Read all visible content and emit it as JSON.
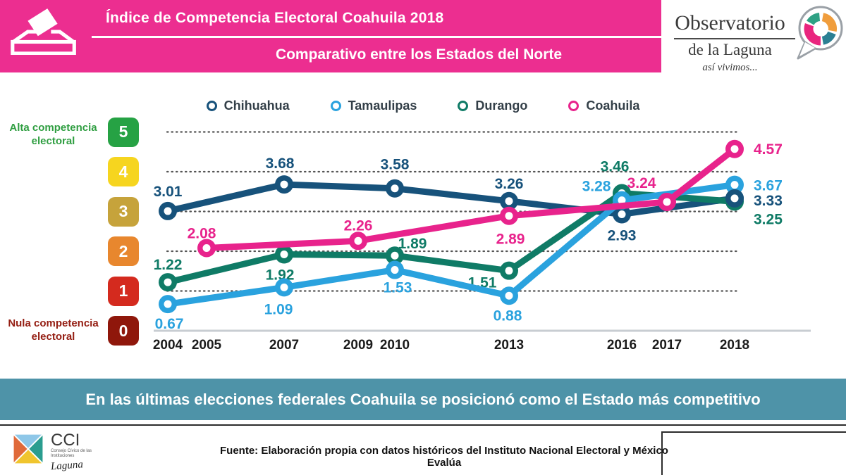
{
  "header": {
    "title": "Índice de Competencia Electoral Coahuila 2018",
    "subtitle": "Comparativo entre los Estados del Norte",
    "bg_color": "#ec2e90",
    "icon": "ballot-box-icon"
  },
  "brand": {
    "name": "Observatorio",
    "sub": "de la Laguna",
    "tagline": "así vivimos...",
    "icon": "speech-bubble-donut-icon",
    "donut_colors": [
      "#f09d3c",
      "#2b7f93",
      "#e9257e",
      "#2ea184"
    ]
  },
  "scale": {
    "high_label": "Alta competencia electoral",
    "low_label": "Nula competencia electoral",
    "high_color": "#2f9e41",
    "low_color": "#941d12",
    "boxes": [
      {
        "value": "5",
        "color": "#26a244"
      },
      {
        "value": "4",
        "color": "#f6d51f"
      },
      {
        "value": "3",
        "color": "#c6a33b"
      },
      {
        "value": "2",
        "color": "#e8872e"
      },
      {
        "value": "1",
        "color": "#d42a1e"
      },
      {
        "value": "0",
        "color": "#8f170b"
      }
    ]
  },
  "chart_data": {
    "type": "line",
    "x_years": [
      2004,
      2005,
      2007,
      2009,
      2010,
      2013,
      2016,
      2017,
      2018
    ],
    "ylim": [
      0,
      5
    ],
    "grid": "horizontal dotted lines at 1,2,3,4,5",
    "legend_position": "top",
    "series": [
      {
        "name": "Chihuahua",
        "color": "#17527b",
        "points": [
          {
            "year": 2004,
            "value": 3.01,
            "dx": 0,
            "dy": -28,
            "anchor": "middle"
          },
          {
            "year": 2007,
            "value": 3.68,
            "dx": -6,
            "dy": -30,
            "anchor": "middle"
          },
          {
            "year": 2010,
            "value": 3.58,
            "dx": 0,
            "dy": -34,
            "anchor": "middle"
          },
          {
            "year": 2013,
            "value": 3.26,
            "dx": 0,
            "dy": -25,
            "anchor": "middle"
          },
          {
            "year": 2016,
            "value": 2.93,
            "dx": 0,
            "dy": 30,
            "anchor": "middle"
          },
          {
            "year": 2018,
            "value": 3.33,
            "dx": 27,
            "dy": 3,
            "anchor": "start"
          }
        ]
      },
      {
        "name": "Durango",
        "color": "#0f7b66",
        "points": [
          {
            "year": 2004,
            "value": 1.22,
            "dx": 0,
            "dy": -25,
            "anchor": "middle"
          },
          {
            "year": 2007,
            "value": 1.92,
            "dx": -6,
            "dy": 29,
            "anchor": "middle"
          },
          {
            "year": 2010,
            "value": 1.89,
            "dx": 25,
            "dy": -17,
            "anchor": "middle"
          },
          {
            "year": 2013,
            "value": 1.51,
            "dx": -38,
            "dy": 17,
            "anchor": "middle"
          },
          {
            "year": 2016,
            "value": 3.46,
            "dx": -10,
            "dy": -38,
            "anchor": "middle"
          },
          {
            "year": 2018,
            "value": 3.25,
            "dx": 27,
            "dy": 25,
            "anchor": "start"
          }
        ]
      },
      {
        "name": "Tamaulipas",
        "color": "#2aa2de",
        "points": [
          {
            "year": 2004,
            "value": 0.67,
            "dx": 2,
            "dy": 28,
            "anchor": "middle"
          },
          {
            "year": 2007,
            "value": 1.09,
            "dx": -8,
            "dy": 31,
            "anchor": "middle"
          },
          {
            "year": 2010,
            "value": 1.53,
            "dx": 4,
            "dy": 25,
            "anchor": "middle"
          },
          {
            "year": 2013,
            "value": 0.88,
            "dx": -2,
            "dy": 28,
            "anchor": "middle"
          },
          {
            "year": 2016,
            "value": 3.28,
            "dx": -36,
            "dy": -20,
            "anchor": "middle"
          },
          {
            "year": 2018,
            "value": 3.67,
            "dx": 27,
            "dy": 1,
            "anchor": "start"
          }
        ]
      },
      {
        "name": "Coahuila",
        "color": "#e8238c",
        "points": [
          {
            "year": 2005,
            "value": 2.08,
            "dx": -7,
            "dy": -21,
            "anchor": "middle"
          },
          {
            "year": 2009,
            "value": 2.26,
            "dx": 0,
            "dy": -22,
            "anchor": "middle"
          },
          {
            "year": 2013,
            "value": 2.89,
            "dx": 2,
            "dy": 33,
            "anchor": "middle"
          },
          {
            "year": 2017,
            "value": 3.24,
            "dx": -36,
            "dy": -27,
            "anchor": "middle"
          },
          {
            "year": 2018,
            "value": 4.57,
            "dx": 27,
            "dy": 0,
            "anchor": "start"
          }
        ]
      }
    ],
    "legend_order": [
      "Chihuahua",
      "Tamaulipas",
      "Durango",
      "Coahuila"
    ]
  },
  "banner": {
    "text": "En las últimas elecciones federales Coahuila se posicionó como el Estado más competitivo",
    "bg_color": "#4e93a8"
  },
  "footer": {
    "source": "Fuente: Elaboración propia con datos históricos del Instituto Nacional Electoral y México Evalúa",
    "cci": {
      "acronym": "CCI",
      "full_name": "Consejo Cívico de las Instituciones",
      "script": "Laguna"
    }
  }
}
